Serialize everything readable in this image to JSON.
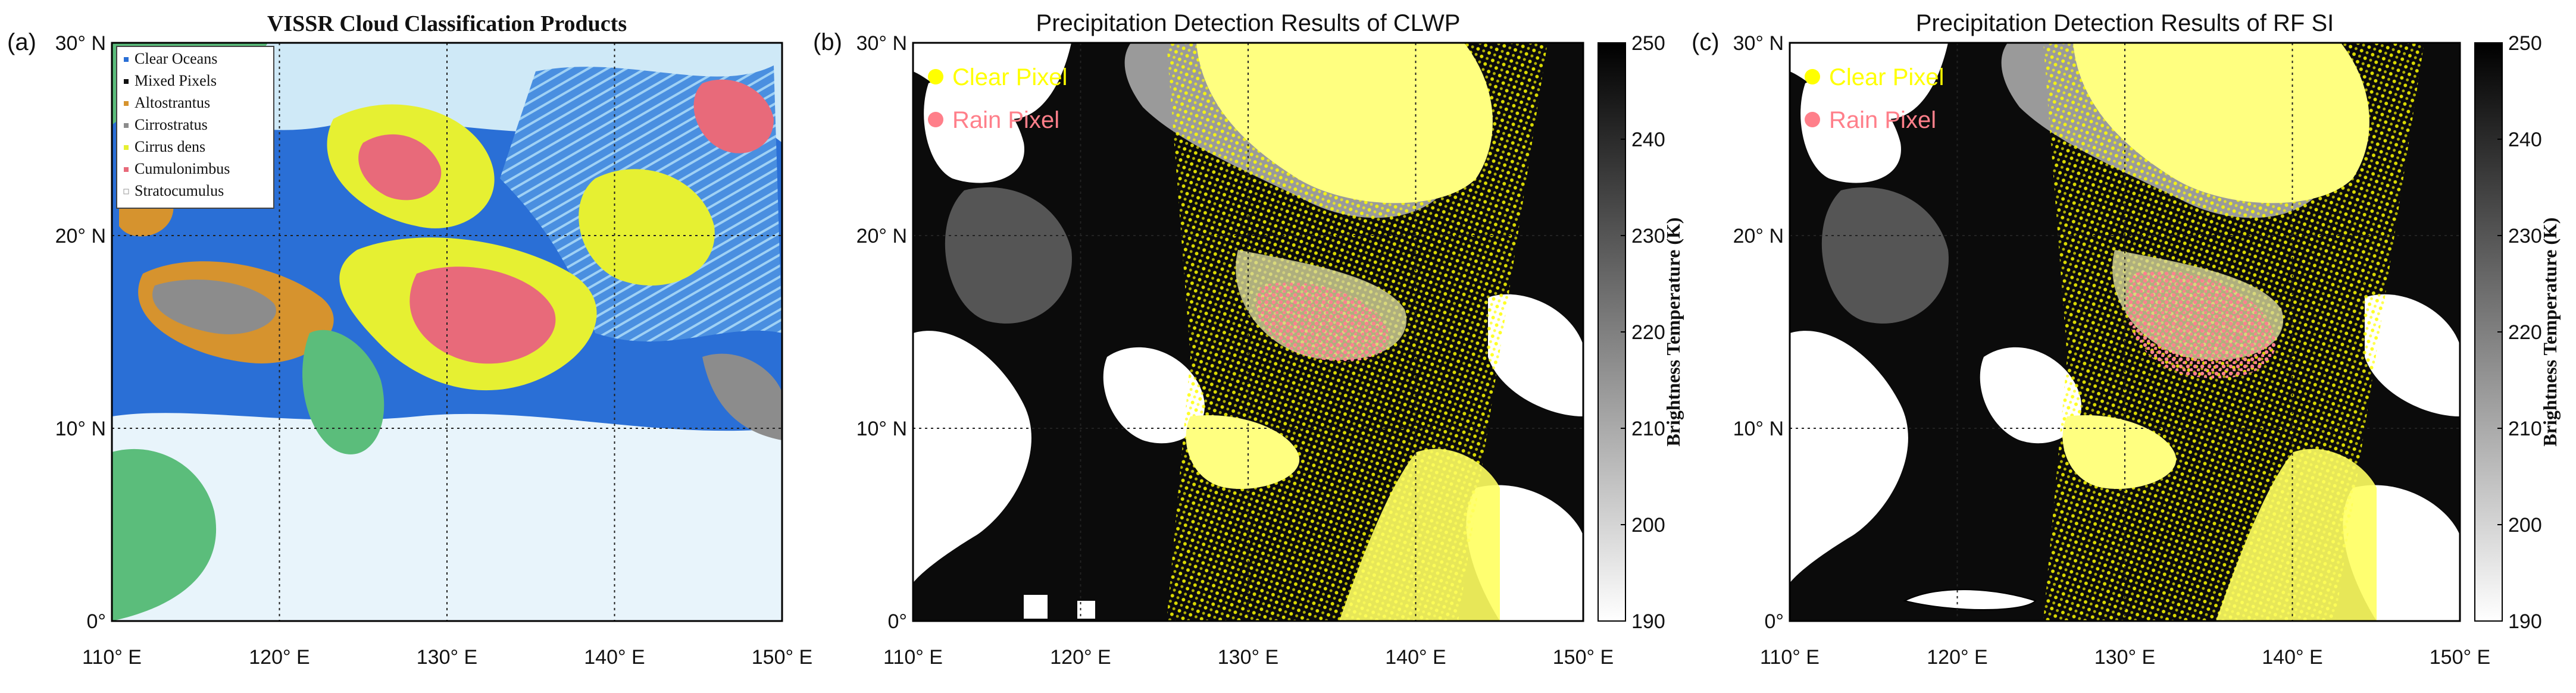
{
  "chart_data": [
    {
      "type": "heatmap",
      "panel_label": "(a)",
      "title": "VISSR Cloud Classification Products",
      "xlim": [
        110,
        150
      ],
      "ylim": [
        0,
        30
      ],
      "x_ticks": [
        110,
        120,
        130,
        140,
        150
      ],
      "y_ticks": [
        0,
        10,
        20,
        30
      ],
      "x_tick_labels": [
        "110° E",
        "120° E",
        "130° E",
        "140° E",
        "150° E"
      ],
      "y_tick_labels": [
        "0°",
        "10° N",
        "20° N",
        "30° N"
      ],
      "grid": "dotted",
      "legend_position": "top-left",
      "legend": [
        {
          "name": "Clear Oceans",
          "color": "#2a6fd6"
        },
        {
          "name": "Mixed Pixels",
          "color": "#111111"
        },
        {
          "name": "Altostrantus",
          "color": "#d6932e"
        },
        {
          "name": "Cirrostratus",
          "color": "#8c8c8c"
        },
        {
          "name": "Cirrus dens",
          "color": "#e6f032"
        },
        {
          "name": "Cumulonimbus",
          "color": "#e86a7a"
        },
        {
          "name": "Stratocumulus",
          "color": "#ffffff"
        }
      ],
      "land_color": "#5bbd7b"
    },
    {
      "type": "heatmap",
      "panel_label": "(b)",
      "title": "Precipitation Detection Results of CLWP",
      "xlim": [
        110,
        150
      ],
      "ylim": [
        0,
        30
      ],
      "x_ticks": [
        110,
        120,
        130,
        140,
        150
      ],
      "y_ticks": [
        0,
        10,
        20,
        30
      ],
      "x_tick_labels": [
        "110° E",
        "120° E",
        "130° E",
        "140° E",
        "150° E"
      ],
      "y_tick_labels": [
        "0°",
        "10° N",
        "20° N",
        "30° N"
      ],
      "grid": "dotted",
      "legend_position": "top-left",
      "legend": [
        {
          "name": "Clear Pixel",
          "color": "#ffff00"
        },
        {
          "name": "Rain Pixel",
          "color": "#ff7f8a"
        }
      ],
      "colorbar": {
        "label": "Brightness Temperature (K)",
        "range": [
          190,
          250
        ],
        "ticks": [
          190,
          200,
          210,
          220,
          230,
          240,
          250
        ],
        "colormap": "gray (190 white to 250 black)"
      }
    },
    {
      "type": "heatmap",
      "panel_label": "(c)",
      "title": "Precipitation Detection Results of RF SI",
      "xlim": [
        110,
        150
      ],
      "ylim": [
        0,
        30
      ],
      "x_ticks": [
        110,
        120,
        130,
        140,
        150
      ],
      "y_ticks": [
        0,
        10,
        20,
        30
      ],
      "x_tick_labels": [
        "110° E",
        "120° E",
        "130° E",
        "140° E",
        "150° E"
      ],
      "y_tick_labels": [
        "0°",
        "10° N",
        "20° N",
        "30° N"
      ],
      "grid": "dotted",
      "legend_position": "top-left",
      "legend": [
        {
          "name": "Clear Pixel",
          "color": "#ffff00"
        },
        {
          "name": "Rain Pixel",
          "color": "#ff7f8a"
        }
      ],
      "colorbar": {
        "label": "Brightness Temperature (K)",
        "range": [
          190,
          250
        ],
        "ticks": [
          190,
          200,
          210,
          220,
          230,
          240,
          250
        ],
        "colormap": "gray (190 white to 250 black)"
      }
    }
  ]
}
